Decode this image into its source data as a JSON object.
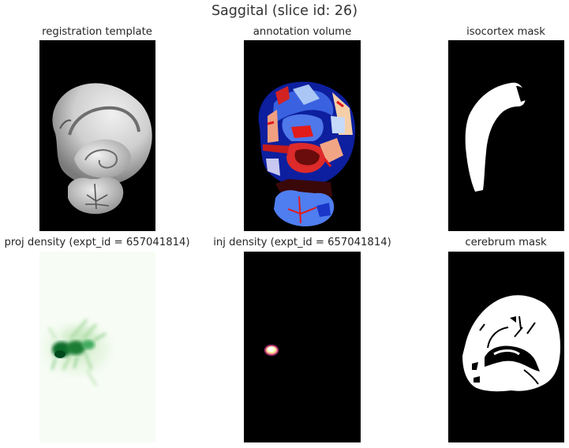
{
  "figure": {
    "suptitle": "Saggital (slice id: 26)"
  },
  "chart_data": [
    {
      "type": "image",
      "title": "registration template",
      "colormap": "gray",
      "description": "Greyscale reference brain section: cerebrum with folded hippocampus, cerebellum below"
    },
    {
      "type": "image",
      "title": "annotation volume",
      "colormap": "coolwarm",
      "description": "Label map of brain structures shown with blue, light-blue, salmon, red, cream and dark red regions"
    },
    {
      "type": "image",
      "title": "isocortex mask",
      "colormap": "gray",
      "description": "Binary mask: white curved isocortex band on black"
    },
    {
      "type": "image",
      "title": "proj density (expt_id = 657041814)",
      "colormap": "Greens",
      "description": "Projection density: dark green spot with faint streaks on pale green background"
    },
    {
      "type": "image",
      "title": "inj density (expt_id = 657041814)",
      "colormap": "magma",
      "description": "Injection density: single small white/pink spot on black"
    },
    {
      "type": "image",
      "title": "cerebrum mask",
      "colormap": "gray",
      "description": "Binary mask: white cerebrum region with black internal gaps on black"
    }
  ],
  "colors": {
    "greens_background": "#f7fcf5",
    "greens_dark": "#0b6d2c",
    "coolwarm_blue": "#3b5bd6",
    "coolwarm_red": "#e01a1a"
  }
}
